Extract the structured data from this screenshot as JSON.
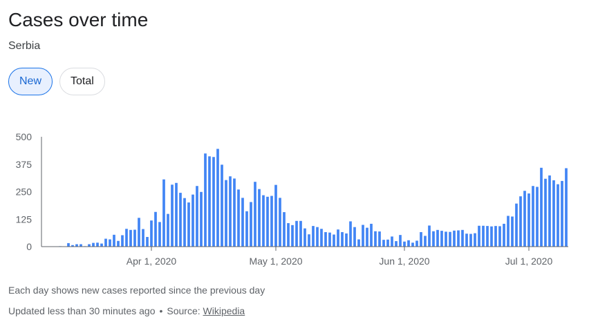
{
  "header": {
    "title": "Cases over time",
    "subtitle": "Serbia"
  },
  "toggles": {
    "new_label": "New",
    "total_label": "Total",
    "selected": "New"
  },
  "footer": {
    "note": "Each day shows new cases reported since the previous day",
    "updated": "Updated less than 30 minutes ago",
    "separator": "•",
    "source_prefix": "Source:",
    "source_link": "Wikipedia"
  },
  "colors": {
    "bar": "#4285f4",
    "axis": "#5f6368",
    "active_toggle_bg": "#e8f0fe",
    "active_toggle_text": "#1967d2"
  },
  "chart_data": {
    "type": "bar",
    "start_date": "2020-03-06",
    "y_ticks": [
      0,
      125,
      250,
      375,
      500
    ],
    "ylim": [
      0,
      500
    ],
    "x_ticks": [
      {
        "date": "2020-04-01",
        "label": "Apr 1, 2020"
      },
      {
        "date": "2020-05-01",
        "label": "May 1, 2020"
      },
      {
        "date": "2020-06-01",
        "label": "Jun 1, 2020"
      },
      {
        "date": "2020-07-01",
        "label": "Jul 1, 2020"
      }
    ],
    "grid": false,
    "legend": "none",
    "values": [
      1,
      0,
      0,
      1,
      2,
      1,
      16,
      7,
      11,
      11,
      2,
      11,
      17,
      18,
      14,
      36,
      33,
      54,
      26,
      52,
      81,
      76,
      77,
      131,
      80,
      44,
      119,
      158,
      112,
      306,
      149,
      282,
      290,
      245,
      221,
      201,
      237,
      276,
      249,
      424,
      411,
      408,
      445,
      373,
      303,
      320,
      310,
      260,
      222,
      161,
      203,
      295,
      262,
      234,
      227,
      231,
      281,
      222,
      157,
      107,
      98,
      117,
      117,
      83,
      56,
      94,
      89,
      81,
      66,
      64,
      55,
      78,
      66,
      60,
      115,
      89,
      33,
      99,
      86,
      104,
      70,
      69,
      31,
      32,
      46,
      25,
      53,
      23,
      29,
      18,
      27,
      66,
      49,
      96,
      70,
      76,
      72,
      68,
      67,
      73,
      74,
      76,
      59,
      58,
      61,
      95,
      95,
      94,
      92,
      94,
      93,
      104,
      140,
      137,
      196,
      229,
      254,
      242,
      276,
      272,
      359,
      309,
      324,
      302,
      284,
      299,
      357
    ]
  }
}
